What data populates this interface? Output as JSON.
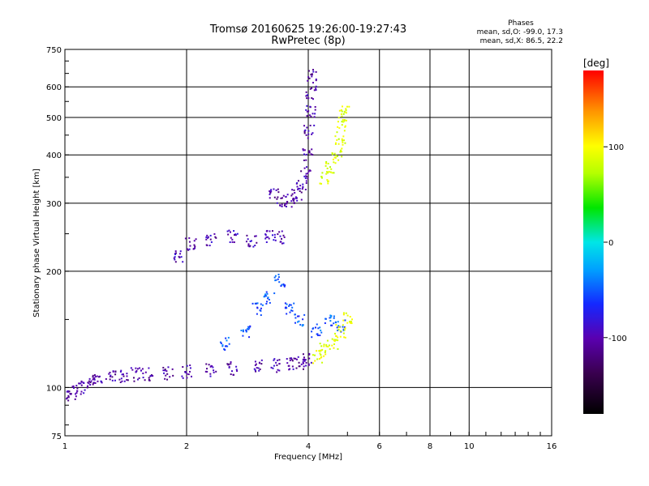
{
  "chart_data": {
    "type": "scatter",
    "title": "Tromsø 20160625 19:26:00-19:27:43",
    "subtitle": "RwPretec (8p)",
    "xlabel": "Frequency [MHz]",
    "ylabel": "Stationary phase Virtual Height [km]",
    "x_scale": "log",
    "y_scale": "log",
    "xlim": [
      1,
      16
    ],
    "ylim": [
      75,
      750
    ],
    "x_ticks": [
      1,
      2,
      4,
      6,
      8,
      10,
      16
    ],
    "y_ticks": [
      75,
      100,
      200,
      300,
      400,
      500,
      600,
      750
    ],
    "grid": true,
    "stats": {
      "heading": "Phases",
      "o_mode": "mean, sd,O: -99.0, 17.3",
      "x_mode": "mean, sd,X:  86.5, 22.2"
    },
    "colorbar": {
      "label": "[deg]",
      "range": [
        -180,
        180
      ],
      "ticks": [
        100,
        0,
        -100
      ],
      "colormap": [
        "#000000",
        "#3a0050",
        "#5a00b0",
        "#1428ff",
        "#00a0ff",
        "#00e6e6",
        "#00e600",
        "#b4ff00",
        "#ffff00",
        "#ff9600",
        "#ff0000"
      ]
    },
    "traces": [
      {
        "name_hint": "O-mode lower trace",
        "phase": -110,
        "points": [
          [
            1.0,
            95
          ],
          [
            1.05,
            97
          ],
          [
            1.1,
            100
          ],
          [
            1.15,
            104
          ],
          [
            1.2,
            105
          ],
          [
            1.3,
            106
          ],
          [
            1.4,
            107
          ],
          [
            1.5,
            108
          ],
          [
            1.6,
            108
          ],
          [
            1.8,
            109
          ],
          [
            2.0,
            110
          ],
          [
            2.3,
            111
          ],
          [
            2.6,
            112
          ],
          [
            3.0,
            113
          ],
          [
            3.3,
            114
          ],
          [
            3.6,
            115
          ],
          [
            3.8,
            116
          ],
          [
            4.0,
            118
          ]
        ]
      },
      {
        "name_hint": "O-mode F-layer cusp",
        "phase": -110,
        "points": [
          [
            3.3,
            320
          ],
          [
            3.45,
            305
          ],
          [
            3.6,
            305
          ],
          [
            3.75,
            315
          ],
          [
            3.85,
            330
          ],
          [
            3.95,
            360
          ],
          [
            4.0,
            400
          ],
          [
            4.02,
            460
          ],
          [
            4.05,
            520
          ],
          [
            4.07,
            580
          ],
          [
            4.08,
            640
          ]
        ]
      },
      {
        "name_hint": "X-mode trace",
        "phase": 90,
        "points": [
          [
            4.4,
            350
          ],
          [
            4.55,
            370
          ],
          [
            4.7,
            400
          ],
          [
            4.8,
            440
          ],
          [
            4.85,
            480
          ],
          [
            4.9,
            520
          ]
        ]
      },
      {
        "name_hint": "E-sporadic band",
        "phase": -105,
        "points": [
          [
            1.9,
            220
          ],
          [
            2.05,
            235
          ],
          [
            2.3,
            240
          ],
          [
            2.6,
            245
          ],
          [
            2.9,
            240
          ],
          [
            3.2,
            245
          ],
          [
            3.4,
            245
          ]
        ]
      },
      {
        "name_hint": "scattered spread echoes",
        "phase": -60,
        "points": [
          [
            2.5,
            130
          ],
          [
            2.8,
            140
          ],
          [
            3.0,
            160
          ],
          [
            3.2,
            170
          ],
          [
            3.4,
            190
          ],
          [
            3.6,
            160
          ],
          [
            3.8,
            150
          ],
          [
            4.2,
            140
          ],
          [
            4.5,
            150
          ],
          [
            4.8,
            145
          ]
        ]
      },
      {
        "name_hint": "X-mode lower spread",
        "phase": 95,
        "points": [
          [
            4.2,
            120
          ],
          [
            4.4,
            125
          ],
          [
            4.6,
            130
          ],
          [
            4.8,
            140
          ],
          [
            5.0,
            150
          ]
        ]
      }
    ]
  }
}
